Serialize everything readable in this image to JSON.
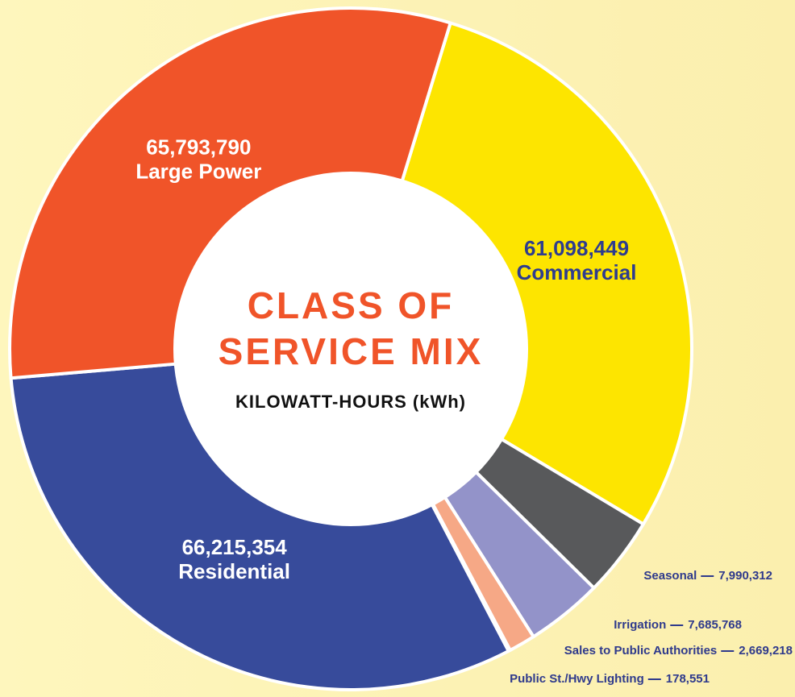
{
  "chart_data": {
    "type": "donut",
    "title": [
      "CLASS OF",
      "SERVICE MIX"
    ],
    "subtitle": "KILOWATT-HOURS (kWh)",
    "categories": [
      "Commercial",
      "Seasonal",
      "Irrigation",
      "Sales to Public Authorities",
      "Public St./Hwy Lighting",
      "Residential",
      "Large Power"
    ],
    "values": [
      61098449,
      7990312,
      7685768,
      2669218,
      178551,
      66215354,
      65793790
    ],
    "value_labels": [
      "61,098,449",
      "7,990,312",
      "7,685,768",
      "2,669,218",
      "178,551",
      "66,215,354",
      "65,793,790"
    ],
    "colors": [
      "#fde500",
      "#58595b",
      "#9393c9",
      "#f6a886",
      "#f39a7a",
      "#374b9b",
      "#f05429"
    ]
  }
}
